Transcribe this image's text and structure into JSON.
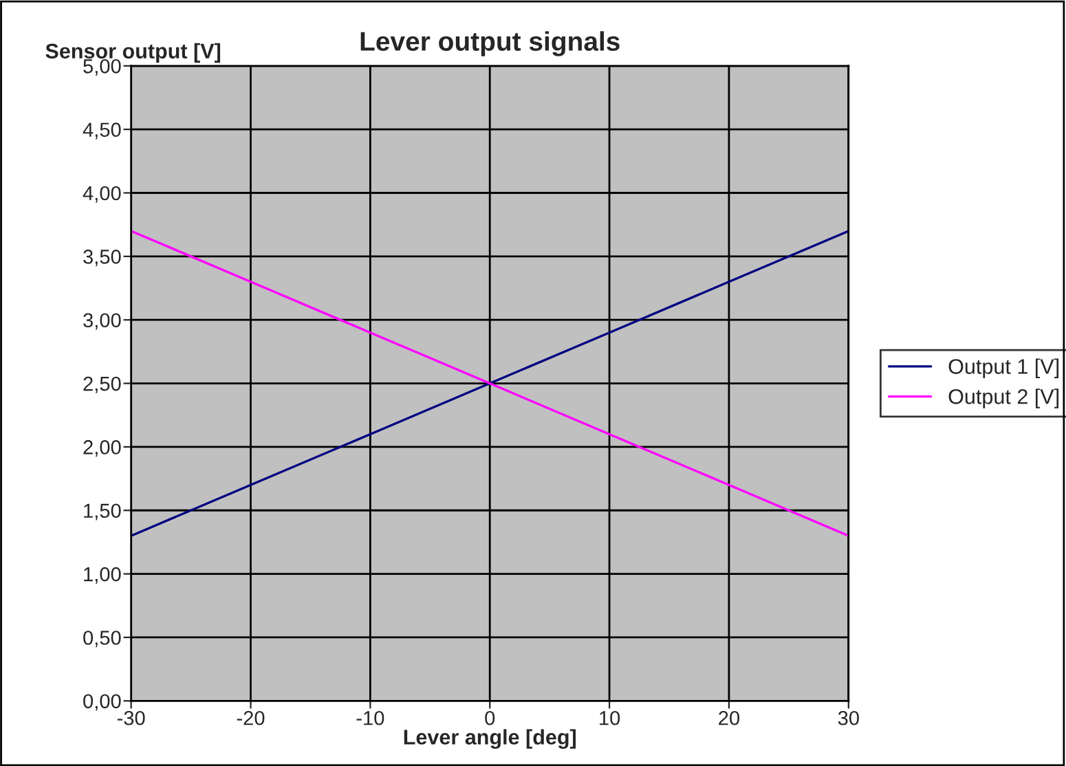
{
  "chart_data": {
    "type": "line",
    "title": "Lever output signals",
    "xlabel": "Lever angle [deg]",
    "ylabel": "Sensor output [V]",
    "x": [
      -30,
      -20,
      -10,
      0,
      10,
      20,
      30
    ],
    "series": [
      {
        "name": "Output 1 [V]",
        "color": "#000080",
        "values": [
          1.3,
          1.7,
          2.1,
          2.5,
          2.9,
          3.3,
          3.7
        ]
      },
      {
        "name": "Output 2 [V]",
        "color": "#ff00ff",
        "values": [
          3.7,
          3.3,
          2.9,
          2.5,
          2.1,
          1.7,
          1.3
        ]
      }
    ],
    "xlim": [
      -30,
      30
    ],
    "xticks": [
      -30,
      -20,
      -10,
      0,
      10,
      20,
      30
    ],
    "ylim": [
      0,
      5
    ],
    "yticks": [
      {
        "value": 0,
        "label": "0,00"
      },
      {
        "value": 0.5,
        "label": "0,50"
      },
      {
        "value": 1,
        "label": "1,00"
      },
      {
        "value": 1.5,
        "label": "1,50"
      },
      {
        "value": 2,
        "label": "2,00"
      },
      {
        "value": 2.5,
        "label": "2,50"
      },
      {
        "value": 3,
        "label": "3,00"
      },
      {
        "value": 3.5,
        "label": "3,50"
      },
      {
        "value": 4,
        "label": "4,00"
      },
      {
        "value": 4.5,
        "label": "4,50"
      },
      {
        "value": 5,
        "label": "5,00"
      }
    ],
    "grid": true,
    "legend": "right",
    "marker": "none",
    "line_style": "solid"
  }
}
